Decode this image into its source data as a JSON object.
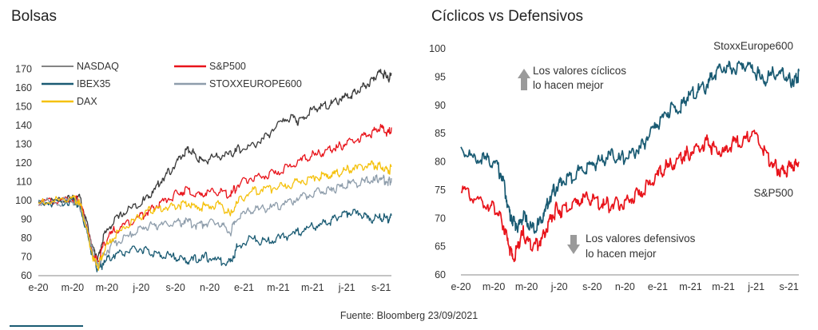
{
  "source": "Fuente: Bloomberg 23/09/2021",
  "colors": {
    "nasdaq": "#3a3a3a",
    "sp500": "#e8141b",
    "ibex35": "#1a5b73",
    "stoxx": "#8e9dab",
    "dax": "#f5c10c",
    "arrow": "#9a9a9a"
  },
  "chart_data": [
    {
      "type": "line",
      "title": "Bolsas",
      "x_ticks": [
        "e-20",
        "m-20",
        "m-20",
        "j-20",
        "s-20",
        "n-20",
        "e-21",
        "m-21",
        "m-21",
        "j-21",
        "s-21"
      ],
      "ylim": [
        60,
        175
      ],
      "y_ticks": [
        60,
        70,
        80,
        90,
        100,
        110,
        120,
        130,
        140,
        150,
        160,
        170
      ],
      "legend": "top-left",
      "series": [
        {
          "name": "NASDAQ",
          "color": "#3a3a3a",
          "values": [
            [
              0,
              100
            ],
            [
              0.6,
              101
            ],
            [
              1.0,
              102
            ],
            [
              1.2,
              103
            ],
            [
              1.4,
              90
            ],
            [
              1.6,
              75
            ],
            [
              1.75,
              70
            ],
            [
              1.9,
              82
            ],
            [
              2.2,
              90
            ],
            [
              2.6,
              96
            ],
            [
              3,
              100
            ],
            [
              3.3,
              105
            ],
            [
              3.6,
              112
            ],
            [
              3.9,
              118
            ],
            [
              4.2,
              125
            ],
            [
              4.4,
              129
            ],
            [
              4.6,
              124
            ],
            [
              4.8,
              122
            ],
            [
              5.2,
              125
            ],
            [
              5.6,
              126
            ],
            [
              5.8,
              128
            ],
            [
              6.2,
              130
            ],
            [
              6.6,
              134
            ],
            [
              7.0,
              142
            ],
            [
              7.4,
              146
            ],
            [
              7.6,
              143
            ],
            [
              7.9,
              148
            ],
            [
              8.2,
              151
            ],
            [
              8.5,
              152
            ],
            [
              8.8,
              155
            ],
            [
              9.1,
              157
            ],
            [
              9.3,
              159
            ],
            [
              9.6,
              163
            ],
            [
              9.8,
              167
            ],
            [
              10.0,
              170
            ],
            [
              10.2,
              166
            ],
            [
              10.3,
              168
            ]
          ]
        },
        {
          "name": "S&P500",
          "color": "#e8141b",
          "values": [
            [
              0,
              100
            ],
            [
              0.6,
              101
            ],
            [
              1.0,
              102
            ],
            [
              1.2,
              101
            ],
            [
              1.4,
              88
            ],
            [
              1.6,
              72
            ],
            [
              1.75,
              68
            ],
            [
              1.9,
              78
            ],
            [
              2.2,
              85
            ],
            [
              2.6,
              89
            ],
            [
              3,
              93
            ],
            [
              3.3,
              96
            ],
            [
              3.6,
              100
            ],
            [
              4.0,
              104
            ],
            [
              4.3,
              107
            ],
            [
              4.6,
              104
            ],
            [
              4.9,
              105
            ],
            [
              5.3,
              106
            ],
            [
              5.6,
              104
            ],
            [
              5.8,
              109
            ],
            [
              6.2,
              113
            ],
            [
              6.6,
              114
            ],
            [
              7.0,
              116
            ],
            [
              7.4,
              120
            ],
            [
              7.8,
              124
            ],
            [
              8.2,
              126
            ],
            [
              8.5,
              128
            ],
            [
              8.8,
              130
            ],
            [
              9.1,
              133
            ],
            [
              9.5,
              135
            ],
            [
              9.8,
              138
            ],
            [
              10.0,
              140
            ],
            [
              10.2,
              137
            ],
            [
              10.3,
              139
            ]
          ]
        },
        {
          "name": "IBEX35",
          "color": "#1a5b73",
          "values": [
            [
              0,
              100
            ],
            [
              0.6,
              100
            ],
            [
              1.0,
              101
            ],
            [
              1.2,
              99
            ],
            [
              1.4,
              85
            ],
            [
              1.6,
              70
            ],
            [
              1.75,
              64
            ],
            [
              1.9,
              68
            ],
            [
              2.2,
              72
            ],
            [
              2.6,
              74
            ],
            [
              3,
              75
            ],
            [
              3.3,
              73
            ],
            [
              3.6,
              72
            ],
            [
              4.0,
              71
            ],
            [
              4.3,
              69
            ],
            [
              4.6,
              70
            ],
            [
              4.9,
              71
            ],
            [
              5.3,
              69
            ],
            [
              5.6,
              68
            ],
            [
              5.8,
              76
            ],
            [
              6.2,
              81
            ],
            [
              6.6,
              79
            ],
            [
              7.0,
              81
            ],
            [
              7.4,
              83
            ],
            [
              7.8,
              86
            ],
            [
              8.2,
              88
            ],
            [
              8.5,
              90
            ],
            [
              8.8,
              93
            ],
            [
              9.1,
              95
            ],
            [
              9.4,
              94
            ],
            [
              9.7,
              91
            ],
            [
              10.0,
              92
            ],
            [
              10.2,
              91
            ],
            [
              10.3,
              92
            ]
          ]
        },
        {
          "name": "STOXXEUROPE600",
          "color": "#8e9dab",
          "values": [
            [
              0,
              100
            ],
            [
              0.6,
              100
            ],
            [
              1.0,
              101
            ],
            [
              1.2,
              99
            ],
            [
              1.4,
              88
            ],
            [
              1.6,
              72
            ],
            [
              1.75,
              66
            ],
            [
              1.9,
              72
            ],
            [
              2.2,
              78
            ],
            [
              2.6,
              82
            ],
            [
              3,
              86
            ],
            [
              3.3,
              88
            ],
            [
              3.6,
              88
            ],
            [
              4.0,
              89
            ],
            [
              4.3,
              90
            ],
            [
              4.6,
              88
            ],
            [
              4.9,
              89
            ],
            [
              5.3,
              89
            ],
            [
              5.6,
              84
            ],
            [
              5.8,
              92
            ],
            [
              6.2,
              96
            ],
            [
              6.6,
              97
            ],
            [
              7.0,
              98
            ],
            [
              7.4,
              101
            ],
            [
              7.8,
              104
            ],
            [
              8.2,
              106
            ],
            [
              8.5,
              107
            ],
            [
              8.8,
              108
            ],
            [
              9.1,
              110
            ],
            [
              9.5,
              111
            ],
            [
              9.8,
              112
            ],
            [
              10.0,
              113
            ],
            [
              10.2,
              111
            ],
            [
              10.3,
              112
            ]
          ]
        },
        {
          "name": "DAX",
          "color": "#f5c10c",
          "values": [
            [
              0,
              100
            ],
            [
              0.6,
              101
            ],
            [
              1.0,
              102
            ],
            [
              1.2,
              100
            ],
            [
              1.4,
              87
            ],
            [
              1.6,
              70
            ],
            [
              1.75,
              66
            ],
            [
              1.9,
              74
            ],
            [
              2.2,
              82
            ],
            [
              2.6,
              88
            ],
            [
              3,
              93
            ],
            [
              3.3,
              96
            ],
            [
              3.6,
              97
            ],
            [
              4.0,
              98
            ],
            [
              4.3,
              100
            ],
            [
              4.6,
              97
            ],
            [
              4.9,
              98
            ],
            [
              5.3,
              99
            ],
            [
              5.6,
              93
            ],
            [
              5.8,
              100
            ],
            [
              6.2,
              106
            ],
            [
              6.6,
              107
            ],
            [
              7.0,
              108
            ],
            [
              7.4,
              110
            ],
            [
              7.8,
              112
            ],
            [
              8.2,
              114
            ],
            [
              8.5,
              115
            ],
            [
              8.8,
              116
            ],
            [
              9.1,
              118
            ],
            [
              9.5,
              119
            ],
            [
              9.8,
              120
            ],
            [
              10.0,
              119
            ],
            [
              10.2,
              117
            ],
            [
              10.3,
              118
            ]
          ]
        }
      ]
    },
    {
      "type": "line",
      "title": "Cíclicos vs Defensivos",
      "x_ticks": [
        "e-20",
        "m-20",
        "m-20",
        "j-20",
        "s-20",
        "n-20",
        "e-21",
        "m-21",
        "m-21",
        "j-21",
        "s-21"
      ],
      "ylim": [
        60,
        100
      ],
      "y_ticks": [
        60,
        65,
        70,
        75,
        80,
        85,
        90,
        95,
        100
      ],
      "series": [
        {
          "name": "StoxxEurope600",
          "color": "#1a5b73",
          "values": [
            [
              0,
              83
            ],
            [
              0.4,
              81
            ],
            [
              0.8,
              81
            ],
            [
              1.1,
              80
            ],
            [
              1.3,
              77
            ],
            [
              1.45,
              72
            ],
            [
              1.6,
              70
            ],
            [
              1.75,
              69
            ],
            [
              1.9,
              71
            ],
            [
              2.1,
              69
            ],
            [
              2.3,
              69
            ],
            [
              2.5,
              71
            ],
            [
              2.7,
              74
            ],
            [
              2.9,
              76
            ],
            [
              3.1,
              77
            ],
            [
              3.4,
              78
            ],
            [
              3.7,
              79
            ],
            [
              4.0,
              80
            ],
            [
              4.3,
              81
            ],
            [
              4.6,
              82
            ],
            [
              4.9,
              81
            ],
            [
              5.2,
              82
            ],
            [
              5.5,
              83
            ],
            [
              5.8,
              86
            ],
            [
              6.1,
              88
            ],
            [
              6.4,
              90
            ],
            [
              6.7,
              90
            ],
            [
              6.9,
              92
            ],
            [
              7.2,
              93
            ],
            [
              7.5,
              94
            ],
            [
              7.7,
              96
            ],
            [
              8.0,
              97
            ],
            [
              8.3,
              97
            ],
            [
              8.6,
              98
            ],
            [
              8.9,
              97
            ],
            [
              9.2,
              95
            ],
            [
              9.5,
              96
            ],
            [
              9.8,
              96
            ],
            [
              10.0,
              95
            ],
            [
              10.2,
              95
            ],
            [
              10.3,
              96
            ]
          ]
        },
        {
          "name": "S&P500",
          "color": "#e8141b",
          "values": [
            [
              0,
              76
            ],
            [
              0.4,
              74
            ],
            [
              0.8,
              73
            ],
            [
              1.1,
              72
            ],
            [
              1.3,
              69
            ],
            [
              1.45,
              66
            ],
            [
              1.6,
              63
            ],
            [
              1.75,
              66
            ],
            [
              1.9,
              68
            ],
            [
              2.1,
              66
            ],
            [
              2.3,
              66
            ],
            [
              2.5,
              67
            ],
            [
              2.7,
              70
            ],
            [
              2.9,
              72
            ],
            [
              3.1,
              72
            ],
            [
              3.4,
              73
            ],
            [
              3.7,
              74
            ],
            [
              4.0,
              74
            ],
            [
              4.3,
              73
            ],
            [
              4.6,
              73
            ],
            [
              4.9,
              73
            ],
            [
              5.2,
              74
            ],
            [
              5.5,
              75
            ],
            [
              5.8,
              77
            ],
            [
              6.1,
              79
            ],
            [
              6.4,
              80
            ],
            [
              6.7,
              81
            ],
            [
              6.9,
              82
            ],
            [
              7.2,
              83
            ],
            [
              7.5,
              84
            ],
            [
              7.7,
              83
            ],
            [
              8.0,
              82
            ],
            [
              8.3,
              84
            ],
            [
              8.6,
              84
            ],
            [
              8.9,
              86
            ],
            [
              9.2,
              83
            ],
            [
              9.5,
              80
            ],
            [
              9.7,
              79
            ],
            [
              9.9,
              79
            ],
            [
              10.1,
              80
            ],
            [
              10.3,
              80
            ]
          ]
        }
      ],
      "annotations": {
        "up_line1": "Los valores cíclicos",
        "up_line2": "lo hacen mejor",
        "down_line1": "Los valores defensivos",
        "down_line2": "lo hacen mejor"
      }
    }
  ]
}
